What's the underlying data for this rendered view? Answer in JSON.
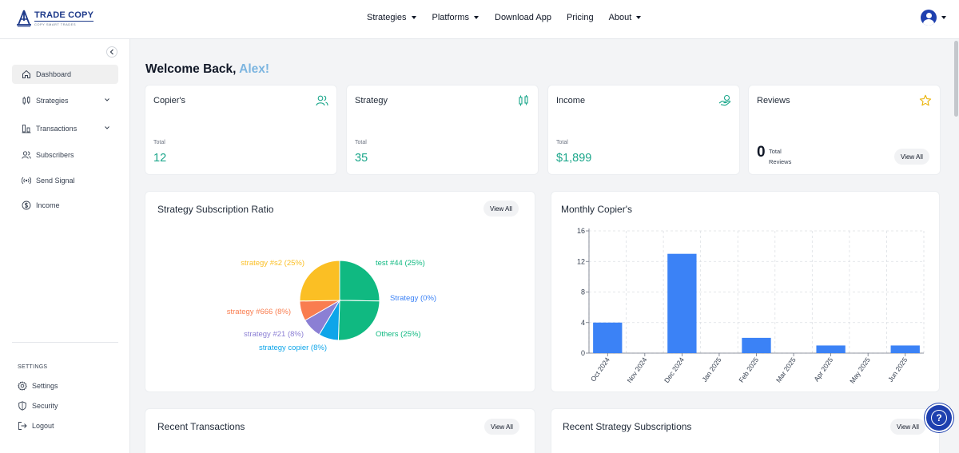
{
  "brand": {
    "title": "TRADE COPY",
    "subtitle": "COPY SMART TRADES"
  },
  "nav": [
    {
      "label": "Strategies",
      "dropdown": true
    },
    {
      "label": "Platforms",
      "dropdown": true
    },
    {
      "label": "Download App",
      "dropdown": false
    },
    {
      "label": "Pricing",
      "dropdown": false
    },
    {
      "label": "About",
      "dropdown": true
    }
  ],
  "sidebar": {
    "items": [
      {
        "label": "Dashboard",
        "icon": "home-icon",
        "active": true,
        "expandable": false
      },
      {
        "label": "Strategies",
        "icon": "candlestick-icon",
        "active": false,
        "expandable": true
      },
      {
        "label": "Transactions",
        "icon": "bar-chart-icon",
        "active": false,
        "expandable": true
      },
      {
        "label": "Subscribers",
        "icon": "users-icon",
        "active": false,
        "expandable": false
      },
      {
        "label": "Send Signal",
        "icon": "broadcast-icon",
        "active": false,
        "expandable": false
      },
      {
        "label": "Income",
        "icon": "dollar-icon",
        "active": false,
        "expandable": false
      }
    ],
    "settings_label": "SETTINGS",
    "settings_items": [
      {
        "label": "Settings",
        "icon": "gear-icon"
      },
      {
        "label": "Security",
        "icon": "shield-icon"
      },
      {
        "label": "Logout",
        "icon": "logout-icon"
      }
    ]
  },
  "welcome": {
    "prefix": "Welcome Back,",
    "name": "Alex!"
  },
  "stats": {
    "copiers": {
      "title": "Copier's",
      "label": "Total",
      "value": "12"
    },
    "strategy": {
      "title": "Strategy",
      "label": "Total",
      "value": "35"
    },
    "income": {
      "title": "Income",
      "label": "Total",
      "value": "$1,899"
    },
    "reviews": {
      "title": "Reviews",
      "value": "0",
      "label_line1": "Total",
      "label_line2": "Reviews",
      "button": "View All"
    }
  },
  "colors": {
    "accent": "#1aa68a",
    "brand": "#1e40af",
    "bar": "#3b82f6",
    "welcome_name": "#7cb5e0"
  },
  "panels": {
    "subscription_ratio": {
      "title": "Strategy Subscription Ratio",
      "button": "View All"
    },
    "monthly_copiers": {
      "title": "Monthly Copier's"
    },
    "recent_transactions": {
      "title": "Recent Transactions",
      "button": "View All"
    },
    "recent_subscriptions": {
      "title": "Recent Strategy Subscriptions",
      "button": "View All"
    }
  },
  "chart_data": [
    {
      "type": "pie",
      "title": "Strategy Subscription Ratio",
      "slices": [
        {
          "label": "test #44 (25%)",
          "value": 25,
          "color": "#10b981"
        },
        {
          "label": "Strategy (0%)",
          "value": 0,
          "color": "#3b82f6"
        },
        {
          "label": "Others (25%)",
          "value": 25,
          "color": "#10b981"
        },
        {
          "label": "strategy copier (8%)",
          "value": 8,
          "color": "#0ea5e9"
        },
        {
          "label": "strategy #21 (8%)",
          "value": 8,
          "color": "#8b7fd4"
        },
        {
          "label": "strategy #666 (8%)",
          "value": 8,
          "color": "#f97d4f"
        },
        {
          "label": "strategy #s2 (25%)",
          "value": 25,
          "color": "#fbbf24"
        }
      ]
    },
    {
      "type": "bar",
      "title": "Monthly Copier's",
      "categories": [
        "Oct 2024",
        "Nov 2024",
        "Dec 2024",
        "Jan 2025",
        "Feb 2025",
        "Mar 2025",
        "Apr 2025",
        "May 2025",
        "Jun 2025"
      ],
      "values": [
        4,
        0,
        13,
        0,
        2,
        0,
        1,
        0,
        1
      ],
      "yticks": [
        0,
        4,
        8,
        12,
        16
      ],
      "ylim": [
        0,
        16
      ],
      "grid": true,
      "color": "#3b82f6"
    }
  ]
}
